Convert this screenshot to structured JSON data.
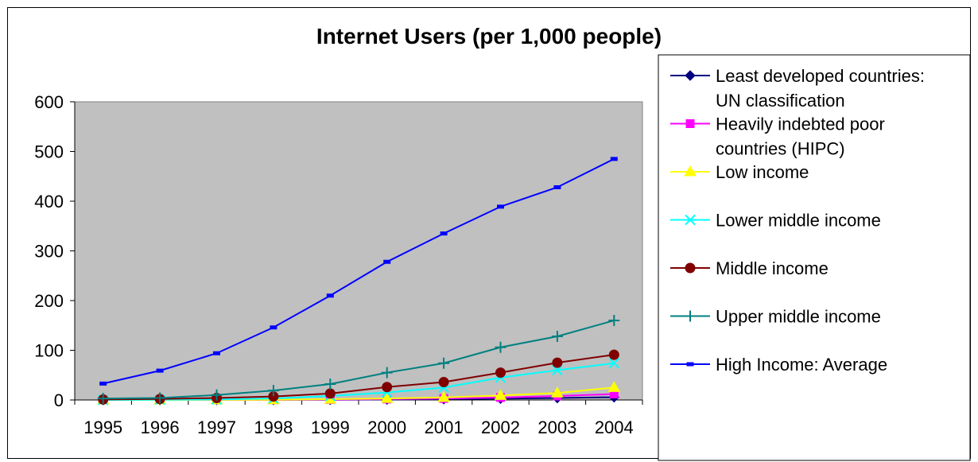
{
  "chart_data": {
    "type": "line",
    "title": "Internet Users (per 1,000 people)",
    "xlabel": "",
    "ylabel": "",
    "categories": [
      "1995",
      "1996",
      "1997",
      "1998",
      "1999",
      "2000",
      "2001",
      "2002",
      "2003",
      "2004"
    ],
    "ylim": [
      0,
      600
    ],
    "yticks": [
      0,
      100,
      200,
      300,
      400,
      500,
      600
    ],
    "grid": false,
    "plot_background": "#c0c0c0",
    "legend_position": "right",
    "series": [
      {
        "name": "Least developed countries: UN classification",
        "name_lines": [
          "Least developed countries:",
          "UN classification"
        ],
        "color": "#000080",
        "marker": "diamond",
        "values": [
          0,
          0,
          0.1,
          0.2,
          0.5,
          1,
          1.8,
          2.8,
          4,
          5.5
        ]
      },
      {
        "name": "Heavily indebted poor countries (HIPC)",
        "name_lines": [
          "Heavily indebted poor",
          "countries (HIPC)"
        ],
        "color": "#ff00ff",
        "marker": "square",
        "values": [
          0,
          0,
          0.1,
          0.3,
          0.8,
          1.8,
          3,
          5,
          8,
          12
        ]
      },
      {
        "name": "Low income",
        "name_lines": [
          "Low income"
        ],
        "color": "#ffff00",
        "marker": "triangle",
        "values": [
          0,
          0,
          0.2,
          0.5,
          1.5,
          3,
          5,
          9,
          14,
          25
        ]
      },
      {
        "name": "Lower middle income",
        "name_lines": [
          "Lower middle income"
        ],
        "color": "#00ffff",
        "marker": "x",
        "values": [
          0,
          0.5,
          1,
          3,
          8,
          15,
          25,
          45,
          60,
          74
        ]
      },
      {
        "name": "Middle income",
        "name_lines": [
          "Middle income"
        ],
        "color": "#800000",
        "marker": "circle",
        "values": [
          1,
          2,
          4,
          7,
          13,
          26,
          36,
          55,
          75,
          91
        ]
      },
      {
        "name": "Upper middle income",
        "name_lines": [
          "Upper middle income"
        ],
        "color": "#008080",
        "marker": "plus",
        "values": [
          3,
          4,
          10,
          19,
          32,
          55,
          74,
          106,
          128,
          160
        ]
      },
      {
        "name": "High Income: Average",
        "name_lines": [
          "High Income: Average"
        ],
        "color": "#0000ff",
        "marker": "dash",
        "values": [
          33,
          59,
          94,
          146,
          210,
          278,
          335,
          389,
          428,
          485
        ]
      }
    ]
  }
}
